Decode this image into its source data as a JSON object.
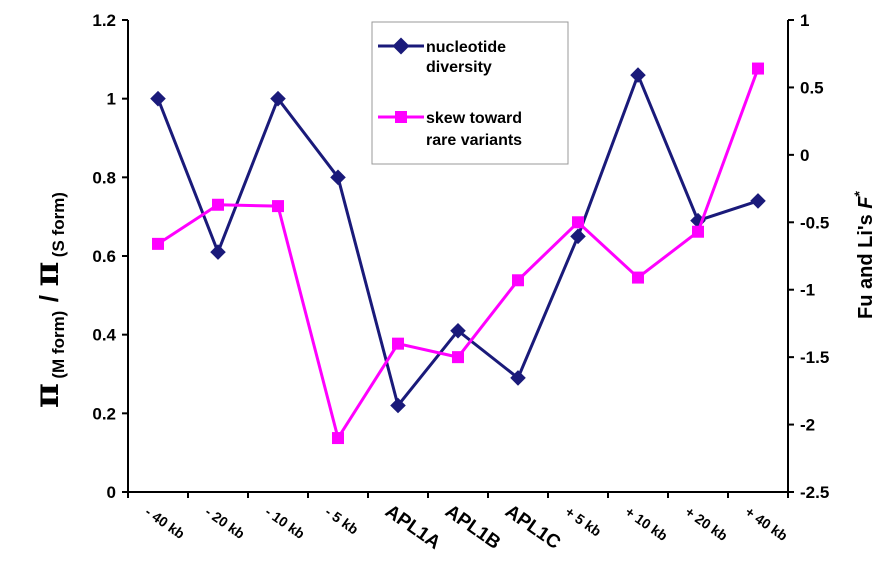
{
  "chart_data": {
    "type": "line",
    "categories": [
      "- 40 kb",
      "- 20 kb",
      "- 10 kb",
      "- 5 kb",
      "APL1A",
      "APL1B",
      "APL1C",
      "+ 5 kb",
      "+ 10 kb",
      "+ 20 kb",
      "+ 40 kb"
    ],
    "emphasized_categories": [
      "APL1A",
      "APL1B",
      "APL1C"
    ],
    "ylabel": {
      "symbol": "π",
      "sub1": "(M form)",
      "slash": "/",
      "sub2": "(S form)"
    },
    "y2label": {
      "prefix": "Fu and Li's ",
      "italic": "F",
      "sup": "*"
    },
    "ylim": [
      0,
      1.2
    ],
    "yticks": [
      "0",
      "0.2",
      "0.4",
      "0.6",
      "0.8",
      "1",
      "1.2"
    ],
    "y2lim": [
      -2.5,
      1
    ],
    "y2ticks": [
      "-2.5",
      "-2",
      "-1.5",
      "-1",
      "-0.5",
      "0",
      "0.5",
      "1"
    ],
    "grid": false,
    "legend_position": "top-center",
    "series": [
      {
        "name_lines": [
          "nucleotide",
          "diversity"
        ],
        "axis": "left",
        "color": "#1a1a7a",
        "marker": "diamond",
        "values": [
          1.0,
          0.61,
          1.0,
          0.8,
          0.22,
          0.41,
          0.29,
          0.65,
          1.06,
          0.69,
          0.74
        ]
      },
      {
        "name_lines": [
          "skew toward",
          "rare variants"
        ],
        "axis": "right",
        "color": "#ff00ff",
        "marker": "square",
        "values": [
          -0.66,
          -0.37,
          -0.38,
          -2.1,
          -1.4,
          -1.5,
          -0.93,
          -0.5,
          -0.91,
          -0.57,
          0.64
        ]
      }
    ]
  }
}
